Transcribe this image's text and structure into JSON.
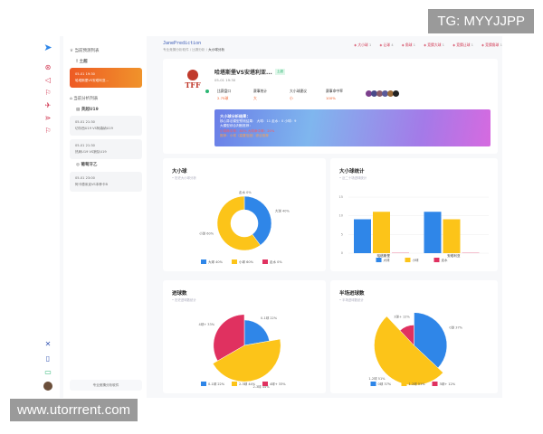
{
  "app": {
    "name": "JanePrediction",
    "breadcrumb": [
      "专业竞猜分析软件",
      "比赛分析",
      "大小球分析"
    ]
  },
  "tabs": [
    {
      "label": "大小球",
      "count": "1"
    },
    {
      "label": "让球",
      "count": "4"
    },
    {
      "label": "角球",
      "count": "1"
    },
    {
      "label": "竞猜大球",
      "count": "1"
    },
    {
      "label": "竞猜让球",
      "count": "1"
    },
    {
      "label": "竞猜角球",
      "count": "1"
    }
  ],
  "sidebar": {
    "section1": "当前预测列表",
    "group1": "土超",
    "active_card": {
      "time": "05-01 19:30",
      "title": "哈塔斯堡VS安塔利亚..."
    },
    "section2": "当前分析列表",
    "group2": "英超U19",
    "cards2": [
      {
        "time": "05-01 21:30",
        "title": "切尔西U19 VS阿森纳U19"
      },
      {
        "time": "05-01 21:30",
        "title": "热刺U19 VS狼队U19"
      }
    ],
    "group3": "葡萄牙乙",
    "cards3": [
      {
        "time": "05-01 23:00",
        "title": "阿卡德米克VS本菲卡B"
      }
    ],
    "footer_button": "专业竞猜分析软件"
  },
  "match": {
    "title": "哈塔斯堡VS安塔利亚...",
    "badge": "土超",
    "time": "05-01 19:30",
    "logo": "TFF BIG",
    "stats": [
      {
        "label": "比赛盘口",
        "value": "2.75球"
      },
      {
        "label": "赛事统计",
        "value": "大"
      },
      {
        "label": "大小球建议",
        "value": "小"
      },
      {
        "label": "赛事命中率",
        "value": "100%"
      }
    ],
    "analysis": {
      "title": "大小球分析结果：",
      "lines": [
        "核心算法模型预测结果：  大球：11  走水：0  小球：9",
        "大模型综合判断推荐：",
        "小球命中率：80%  大球命中率：20%",
        "推荐：小球（高置信度）综合推荐"
      ]
    }
  },
  "colors": {
    "blue": "#2f86e8",
    "yellow": "#fcc419",
    "red": "#e03160",
    "accent": "#d0334e"
  },
  "chart_data": [
    {
      "type": "pie",
      "title": "大小球",
      "subtitle": "历史大小球分析",
      "donut": true,
      "categories": [
        "大球",
        "小球",
        "走水"
      ],
      "values": [
        40,
        60,
        0
      ],
      "labels": [
        "大球 40%",
        "小球 60%",
        "走水 0%"
      ]
    },
    {
      "type": "bar",
      "title": "大小球统计",
      "subtitle": "近二十场进球统计",
      "categories": [
        "哈塔斯堡",
        "安塔利亚"
      ],
      "series": [
        {
          "name": "大球",
          "values": [
            9,
            11
          ]
        },
        {
          "name": "小球",
          "values": [
            11,
            9
          ]
        },
        {
          "name": "走水",
          "values": [
            0,
            0
          ]
        }
      ],
      "ylim": [
        0,
        15
      ],
      "yticks": [
        "0",
        "5",
        "10",
        "15"
      ]
    },
    {
      "type": "pie",
      "title": "进球数",
      "subtitle": "历史进球数统计",
      "rose": true,
      "categories": [
        "0-1球",
        "2-3球",
        "4球+"
      ],
      "values": [
        22,
        44,
        33
      ],
      "labels": [
        "0-1球 22%",
        "2-3球 44%",
        "4球+ 33%"
      ]
    },
    {
      "type": "pie",
      "title": "半场进球数",
      "subtitle": "半场进球数统计",
      "rose": true,
      "categories": [
        "0球",
        "1-2球",
        "3球+"
      ],
      "values": [
        37,
        51,
        12
      ],
      "labels": [
        "0球 37%",
        "1-2球 51%",
        "3球+ 12%"
      ]
    }
  ],
  "watermarks": {
    "top": "TG: MYYJJPP",
    "bottom": "www.utorrrent.com"
  }
}
